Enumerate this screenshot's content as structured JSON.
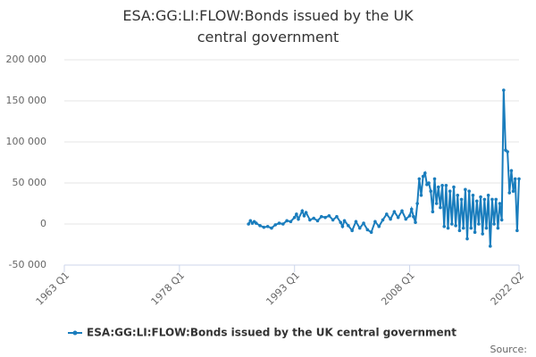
{
  "chart_data": {
    "type": "line",
    "title": "ESA:GG:LI:FLOW:Bonds issued by the UK central government",
    "source": "Source:",
    "series": [
      {
        "name": "ESA:GG:LI:FLOW:Bonds issued by the UK central government",
        "color": "#1a7dbd",
        "x": [
          1987,
          1987.25,
          1987.5,
          1987.75,
          1988,
          1988.5,
          1989,
          1989.5,
          1990,
          1990.5,
          1991,
          1991.5,
          1992,
          1992.5,
          1993,
          1993.25,
          1993.5,
          1994,
          1994.25,
          1994.5,
          1995,
          1995.5,
          1996,
          1996.5,
          1997,
          1997.5,
          1998,
          1998.5,
          1999,
          1999.25,
          1999.5,
          2000,
          2000.5,
          2001,
          2001.5,
          2002,
          2002.5,
          2003,
          2003.5,
          2004,
          2004.5,
          2005,
          2005.5,
          2006,
          2006.5,
          2007,
          2007.5,
          2008,
          2008.25,
          2008.5,
          2008.75,
          2009,
          2009.25,
          2009.5,
          2009.75,
          2010,
          2010.25,
          2010.5,
          2010.75,
          2011,
          2011.25,
          2011.5,
          2011.75,
          2012,
          2012.25,
          2012.5,
          2012.75,
          2013,
          2013.25,
          2013.5,
          2013.75,
          2014,
          2014.25,
          2014.5,
          2014.75,
          2015,
          2015.25,
          2015.5,
          2015.75,
          2016,
          2016.25,
          2016.5,
          2016.75,
          2017,
          2017.25,
          2017.5,
          2017.75,
          2018,
          2018.25,
          2018.5,
          2018.75,
          2019,
          2019.25,
          2019.5,
          2019.75,
          2020,
          2020.25,
          2020.5,
          2020.75,
          2021,
          2021.25,
          2021.5,
          2021.75,
          2022,
          2022.25
        ],
        "values": [
          0,
          4000,
          1000,
          3000,
          1000,
          -2000,
          -4000,
          -3000,
          -5000,
          -1000,
          1000,
          0,
          4000,
          3000,
          8000,
          12000,
          6000,
          16000,
          10000,
          14000,
          5000,
          7000,
          4000,
          9000,
          8000,
          10000,
          5000,
          9000,
          2000,
          -3000,
          4000,
          -2000,
          -8000,
          3000,
          -5000,
          1000,
          -7000,
          -10000,
          3000,
          -3000,
          5000,
          12000,
          6000,
          15000,
          8000,
          16000,
          6000,
          10000,
          18000,
          9000,
          2000,
          25000,
          55000,
          35000,
          58000,
          62000,
          48000,
          50000,
          40000,
          15000,
          55000,
          25000,
          45000,
          20000,
          47000,
          -3000,
          47000,
          -5000,
          40000,
          0,
          45000,
          -2000,
          35000,
          -8000,
          30000,
          -5000,
          42000,
          -18000,
          40000,
          -5000,
          35000,
          -10000,
          28000,
          0,
          33000,
          -12000,
          30000,
          -5000,
          35000,
          -27000,
          30000,
          0,
          30000,
          -5000,
          25000,
          5000,
          163000,
          90000,
          88000,
          38000,
          65000,
          40000,
          55000,
          -8000,
          55000
        ]
      }
    ],
    "xlim": [
      1963,
      2022.25
    ],
    "xticks": [
      {
        "value": 1963,
        "label": "1963 Q1"
      },
      {
        "value": 1978,
        "label": "1978 Q1"
      },
      {
        "value": 1993,
        "label": "1993 Q1"
      },
      {
        "value": 2008,
        "label": "2008 Q1"
      },
      {
        "value": 2022.25,
        "label": "2022 Q2"
      }
    ],
    "ylim": [
      -50000,
      200000
    ],
    "yticks": [
      {
        "value": -50000,
        "label": "-50 000"
      },
      {
        "value": 0,
        "label": "0"
      },
      {
        "value": 50000,
        "label": "50 000"
      },
      {
        "value": 100000,
        "label": "100 000"
      },
      {
        "value": 150000,
        "label": "150 000"
      },
      {
        "value": 200000,
        "label": "200 000"
      }
    ],
    "grid": true
  }
}
